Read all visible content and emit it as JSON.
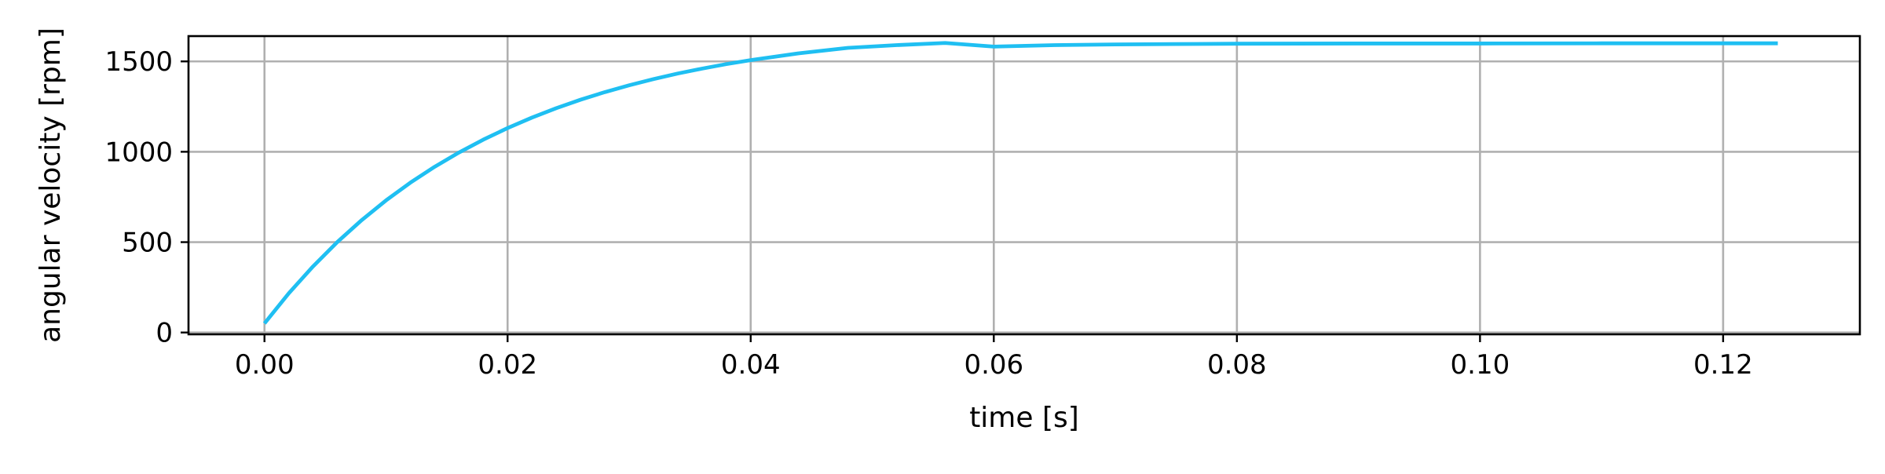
{
  "chart_data": {
    "type": "line",
    "title": "",
    "xlabel": "time [s]",
    "ylabel": "angular velocity [rpm]",
    "xlim": [
      -0.00625,
      0.13125
    ],
    "ylim": [
      -10,
      1640
    ],
    "xticks": [
      0.0,
      0.02,
      0.04,
      0.06,
      0.08,
      0.1,
      0.12
    ],
    "xtick_labels": [
      "0.00",
      "0.02",
      "0.04",
      "0.06",
      "0.08",
      "0.10",
      "0.12"
    ],
    "yticks": [
      0,
      500,
      1000,
      1500
    ],
    "ytick_labels": [
      "0",
      "500",
      "1000",
      "1500"
    ],
    "grid": true,
    "legend": null,
    "series": [
      {
        "color": "#1fbff2",
        "x": [
          0.0,
          0.002,
          0.004,
          0.006,
          0.008,
          0.01,
          0.012,
          0.014,
          0.016,
          0.018,
          0.02,
          0.022,
          0.024,
          0.026,
          0.028,
          0.03,
          0.032,
          0.034,
          0.036,
          0.038,
          0.04,
          0.044,
          0.048,
          0.052,
          0.056,
          0.06,
          0.065,
          0.07,
          0.075,
          0.08,
          0.09,
          0.1,
          0.11,
          0.1245
        ],
        "y": [
          50,
          217,
          366,
          501,
          622,
          731,
          829,
          917,
          996,
          1067,
          1131,
          1189,
          1241,
          1288,
          1330,
          1368,
          1402,
          1433,
          1460,
          1485,
          1507,
          1545,
          1575,
          1590,
          1602,
          1582,
          1590,
          1594,
          1596,
          1598,
          1599,
          1599,
          1600,
          1600
        ]
      }
    ]
  }
}
